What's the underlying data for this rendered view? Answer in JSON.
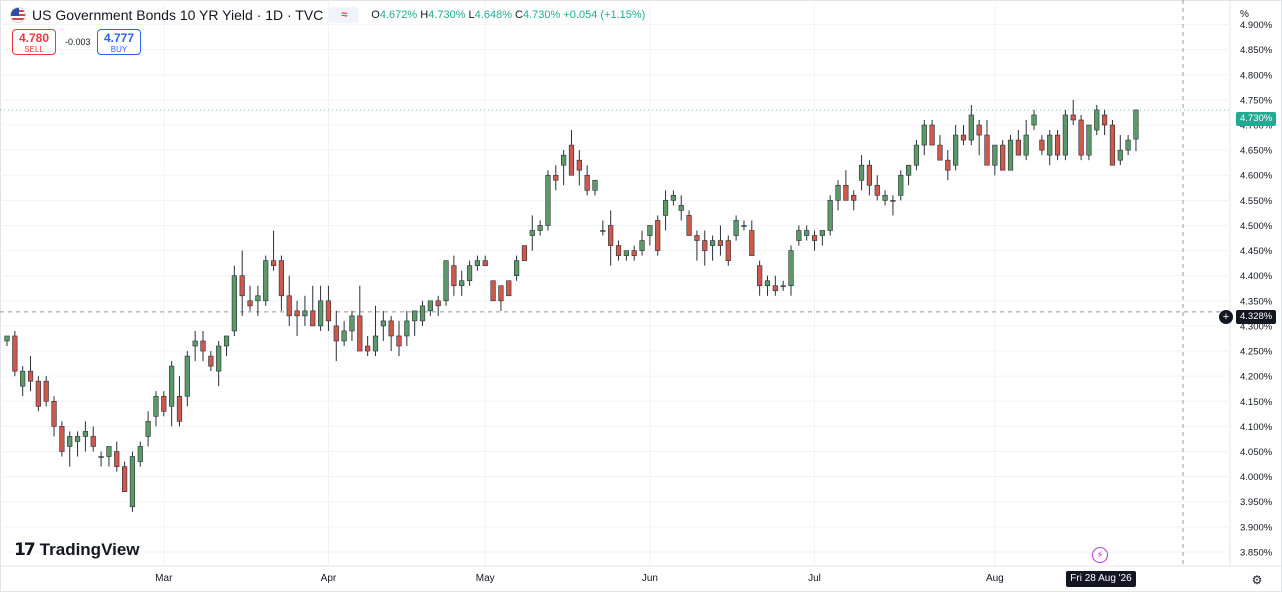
{
  "header": {
    "title": "US Government Bonds 10 YR Yield · 1D · TVC",
    "ohlc": {
      "o_label": "O",
      "o": "4.672%",
      "h_label": "H",
      "h": "4.730%",
      "l_label": "L",
      "l": "4.648%",
      "c_label": "C",
      "c": "4.730%",
      "change": "+0.054 (+1.15%)"
    },
    "pill": "≈"
  },
  "trade": {
    "sell_price": "4.780",
    "sell_label": "SELL",
    "spread": "-0.003",
    "buy_price": "4.777",
    "buy_label": "BUY"
  },
  "axis": {
    "unit": "%"
  },
  "last_price_label": "4.730%",
  "crosshair_price_label": "4.328%",
  "crosshair_date_label": "Fri 28 Aug '26",
  "logo_text": "TradingView",
  "colors": {
    "up": "#5b9a68",
    "down": "#d0574b",
    "last": "#22ab94",
    "grid": "#f0f3fa",
    "text": "#131722"
  },
  "chart_data": {
    "type": "candlestick",
    "y_unit": "%",
    "ylim": [
      3.83,
      4.925
    ],
    "y_ticks": [
      "3.850%",
      "3.900%",
      "3.950%",
      "4.000%",
      "4.050%",
      "4.100%",
      "4.150%",
      "4.200%",
      "4.250%",
      "4.300%",
      "4.350%",
      "4.400%",
      "4.450%",
      "4.500%",
      "4.550%",
      "4.600%",
      "4.650%",
      "4.700%",
      "4.750%",
      "4.800%",
      "4.850%",
      "4.900%"
    ],
    "x_ticks": [
      {
        "label": "Mar",
        "index": 20
      },
      {
        "label": "Apr",
        "index": 41
      },
      {
        "label": "May",
        "index": 61
      },
      {
        "label": "Jun",
        "index": 82
      },
      {
        "label": "Jul",
        "index": 103
      },
      {
        "label": "Aug",
        "index": 126
      }
    ],
    "candles": [
      [
        4.27,
        4.28,
        4.26,
        4.28
      ],
      [
        4.28,
        4.29,
        4.2,
        4.21
      ],
      [
        4.18,
        4.22,
        4.16,
        4.21
      ],
      [
        4.21,
        4.24,
        4.17,
        4.19
      ],
      [
        4.19,
        4.2,
        4.13,
        4.14
      ],
      [
        4.19,
        4.2,
        4.14,
        4.15
      ],
      [
        4.15,
        4.16,
        4.08,
        4.1
      ],
      [
        4.1,
        4.11,
        4.04,
        4.05
      ],
      [
        4.06,
        4.09,
        4.02,
        4.08
      ],
      [
        4.07,
        4.09,
        4.04,
        4.08
      ],
      [
        4.08,
        4.11,
        4.05,
        4.09
      ],
      [
        4.08,
        4.1,
        4.05,
        4.06
      ],
      [
        4.04,
        4.05,
        4.02,
        4.04
      ],
      [
        4.04,
        4.06,
        4.02,
        4.06
      ],
      [
        4.05,
        4.07,
        4.01,
        4.02
      ],
      [
        4.02,
        4.03,
        3.97,
        3.97
      ],
      [
        3.94,
        4.05,
        3.93,
        4.04
      ],
      [
        4.03,
        4.07,
        4.02,
        4.06
      ],
      [
        4.08,
        4.13,
        4.06,
        4.11
      ],
      [
        4.12,
        4.17,
        4.1,
        4.16
      ],
      [
        4.16,
        4.17,
        4.12,
        4.13
      ],
      [
        4.14,
        4.23,
        4.1,
        4.22
      ],
      [
        4.16,
        4.2,
        4.1,
        4.11
      ],
      [
        4.16,
        4.25,
        4.14,
        4.24
      ],
      [
        4.26,
        4.29,
        4.23,
        4.27
      ],
      [
        4.27,
        4.29,
        4.23,
        4.25
      ],
      [
        4.24,
        4.25,
        4.21,
        4.22
      ],
      [
        4.21,
        4.27,
        4.18,
        4.26
      ],
      [
        4.26,
        4.28,
        4.24,
        4.28
      ],
      [
        4.29,
        4.42,
        4.28,
        4.4
      ],
      [
        4.4,
        4.45,
        4.32,
        4.36
      ],
      [
        4.35,
        4.38,
        4.33,
        4.34
      ],
      [
        4.35,
        4.38,
        4.32,
        4.36
      ],
      [
        4.35,
        4.44,
        4.34,
        4.43
      ],
      [
        4.43,
        4.49,
        4.41,
        4.42
      ],
      [
        4.43,
        4.44,
        4.33,
        4.36
      ],
      [
        4.36,
        4.4,
        4.3,
        4.32
      ],
      [
        4.33,
        4.35,
        4.28,
        4.32
      ],
      [
        4.32,
        4.36,
        4.3,
        4.33
      ],
      [
        4.33,
        4.38,
        4.3,
        4.3
      ],
      [
        4.3,
        4.38,
        4.29,
        4.35
      ],
      [
        4.35,
        4.38,
        4.29,
        4.31
      ],
      [
        4.3,
        4.33,
        4.23,
        4.27
      ],
      [
        4.27,
        4.31,
        4.26,
        4.29
      ],
      [
        4.29,
        4.33,
        4.27,
        4.32
      ],
      [
        4.32,
        4.38,
        4.25,
        4.25
      ],
      [
        4.26,
        4.28,
        4.24,
        4.25
      ],
      [
        4.25,
        4.34,
        4.24,
        4.28
      ],
      [
        4.3,
        4.33,
        4.27,
        4.31
      ],
      [
        4.31,
        4.32,
        4.25,
        4.28
      ],
      [
        4.28,
        4.31,
        4.24,
        4.26
      ],
      [
        4.28,
        4.33,
        4.26,
        4.31
      ],
      [
        4.31,
        4.33,
        4.28,
        4.33
      ],
      [
        4.31,
        4.35,
        4.3,
        4.34
      ],
      [
        4.33,
        4.35,
        4.32,
        4.35
      ],
      [
        4.35,
        4.36,
        4.32,
        4.34
      ],
      [
        4.35,
        4.43,
        4.34,
        4.43
      ],
      [
        4.42,
        4.44,
        4.36,
        4.38
      ],
      [
        4.38,
        4.41,
        4.36,
        4.39
      ],
      [
        4.39,
        4.43,
        4.38,
        4.42
      ],
      [
        4.42,
        4.44,
        4.41,
        4.43
      ],
      [
        4.43,
        4.44,
        4.42,
        4.42
      ],
      [
        4.39,
        4.39,
        4.35,
        4.35
      ],
      [
        4.38,
        4.38,
        4.33,
        4.35
      ],
      [
        4.39,
        4.39,
        4.36,
        4.36
      ],
      [
        4.4,
        4.44,
        4.39,
        4.43
      ],
      [
        4.46,
        4.46,
        4.43,
        4.43
      ],
      [
        4.48,
        4.52,
        4.45,
        4.49
      ],
      [
        4.49,
        4.51,
        4.48,
        4.5
      ],
      [
        4.5,
        4.61,
        4.49,
        4.6
      ],
      [
        4.6,
        4.62,
        4.57,
        4.59
      ],
      [
        4.62,
        4.65,
        4.58,
        4.64
      ],
      [
        4.66,
        4.69,
        4.6,
        4.6
      ],
      [
        4.63,
        4.65,
        4.58,
        4.61
      ],
      [
        4.6,
        4.62,
        4.56,
        4.57
      ],
      [
        4.57,
        4.59,
        4.56,
        4.59
      ],
      [
        4.49,
        4.51,
        4.48,
        4.49
      ],
      [
        4.5,
        4.53,
        4.42,
        4.46
      ],
      [
        4.46,
        4.47,
        4.43,
        4.44
      ],
      [
        4.44,
        4.45,
        4.43,
        4.45
      ],
      [
        4.45,
        4.46,
        4.43,
        4.44
      ],
      [
        4.45,
        4.49,
        4.44,
        4.47
      ],
      [
        4.48,
        4.5,
        4.46,
        4.5
      ],
      [
        4.51,
        4.52,
        4.44,
        4.45
      ],
      [
        4.52,
        4.57,
        4.49,
        4.55
      ],
      [
        4.55,
        4.57,
        4.54,
        4.56
      ],
      [
        4.53,
        4.56,
        4.51,
        4.54
      ],
      [
        4.52,
        4.53,
        4.48,
        4.48
      ],
      [
        4.48,
        4.49,
        4.43,
        4.47
      ],
      [
        4.47,
        4.49,
        4.42,
        4.45
      ],
      [
        4.46,
        4.48,
        4.43,
        4.47
      ],
      [
        4.47,
        4.5,
        4.44,
        4.46
      ],
      [
        4.47,
        4.48,
        4.42,
        4.43
      ],
      [
        4.48,
        4.52,
        4.47,
        4.51
      ],
      [
        4.5,
        4.51,
        4.49,
        4.5
      ],
      [
        4.49,
        4.51,
        4.44,
        4.44
      ],
      [
        4.42,
        4.43,
        4.36,
        4.38
      ],
      [
        4.38,
        4.4,
        4.36,
        4.39
      ],
      [
        4.38,
        4.4,
        4.36,
        4.37
      ],
      [
        4.38,
        4.39,
        4.37,
        4.38
      ],
      [
        4.38,
        4.46,
        4.36,
        4.45
      ],
      [
        4.47,
        4.5,
        4.46,
        4.49
      ],
      [
        4.48,
        4.5,
        4.47,
        4.49
      ],
      [
        4.48,
        4.49,
        4.45,
        4.47
      ],
      [
        4.48,
        4.49,
        4.46,
        4.49
      ],
      [
        4.49,
        4.56,
        4.48,
        4.55
      ],
      [
        4.55,
        4.59,
        4.53,
        4.58
      ],
      [
        4.58,
        4.61,
        4.55,
        4.55
      ],
      [
        4.56,
        4.57,
        4.53,
        4.55
      ],
      [
        4.59,
        4.64,
        4.57,
        4.62
      ],
      [
        4.62,
        4.63,
        4.56,
        4.58
      ],
      [
        4.58,
        4.6,
        4.55,
        4.56
      ],
      [
        4.55,
        4.57,
        4.54,
        4.56
      ],
      [
        4.55,
        4.56,
        4.52,
        4.55
      ],
      [
        4.56,
        4.61,
        4.55,
        4.6
      ],
      [
        4.6,
        4.62,
        4.58,
        4.62
      ],
      [
        4.62,
        4.67,
        4.61,
        4.66
      ],
      [
        4.66,
        4.71,
        4.64,
        4.7
      ],
      [
        4.7,
        4.71,
        4.66,
        4.66
      ],
      [
        4.66,
        4.68,
        4.63,
        4.63
      ],
      [
        4.63,
        4.65,
        4.59,
        4.61
      ],
      [
        4.62,
        4.7,
        4.61,
        4.68
      ],
      [
        4.68,
        4.7,
        4.66,
        4.67
      ],
      [
        4.67,
        4.74,
        4.66,
        4.72
      ],
      [
        4.7,
        4.71,
        4.64,
        4.68
      ],
      [
        4.68,
        4.71,
        4.62,
        4.62
      ],
      [
        4.62,
        4.66,
        4.6,
        4.66
      ],
      [
        4.66,
        4.67,
        4.61,
        4.61
      ],
      [
        4.61,
        4.68,
        4.61,
        4.67
      ],
      [
        4.67,
        4.69,
        4.64,
        4.64
      ],
      [
        4.64,
        4.71,
        4.63,
        4.68
      ],
      [
        4.7,
        4.73,
        4.69,
        4.72
      ],
      [
        4.67,
        4.68,
        4.64,
        4.65
      ],
      [
        4.64,
        4.69,
        4.62,
        4.68
      ],
      [
        4.68,
        4.69,
        4.63,
        4.64
      ],
      [
        4.64,
        4.73,
        4.63,
        4.72
      ],
      [
        4.72,
        4.75,
        4.7,
        4.71
      ],
      [
        4.71,
        4.72,
        4.63,
        4.64
      ],
      [
        4.64,
        4.7,
        4.63,
        4.7
      ],
      [
        4.69,
        4.74,
        4.68,
        4.73
      ],
      [
        4.72,
        4.73,
        4.68,
        4.7
      ],
      [
        4.7,
        4.71,
        4.63,
        4.62
      ],
      [
        4.63,
        4.68,
        4.62,
        4.65
      ],
      [
        4.65,
        4.68,
        4.64,
        4.67
      ],
      [
        4.672,
        4.73,
        4.648,
        4.73
      ]
    ],
    "last": 4.73,
    "crosshair_price": 4.328,
    "crosshair_index": 150
  }
}
